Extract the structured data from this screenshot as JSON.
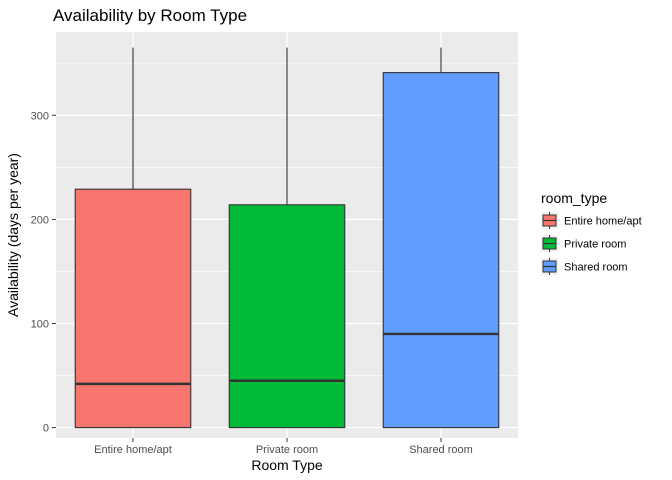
{
  "chart_data": {
    "type": "boxplot",
    "title": "Availability by Room Type",
    "xlabel": "Room Type",
    "ylabel": "Availability (days per year)",
    "ylim": [
      -10,
      380
    ],
    "yticks": [
      0,
      100,
      200,
      300
    ],
    "ytick_labels": [
      "0",
      "100",
      "200",
      "300"
    ],
    "categories": [
      "Entire home/apt",
      "Private room",
      "Shared room"
    ],
    "boxes": [
      {
        "category": "Entire home/apt",
        "min": 0,
        "q1": 0,
        "median": 42,
        "q3": 229,
        "max": 365,
        "color": "#F8766D"
      },
      {
        "category": "Private room",
        "min": 0,
        "q1": 0,
        "median": 45,
        "q3": 214,
        "max": 365,
        "color": "#00BA38"
      },
      {
        "category": "Shared room",
        "min": 0,
        "q1": 0,
        "median": 90,
        "q3": 341,
        "max": 365,
        "color": "#619CFF"
      }
    ],
    "grid": true,
    "legend": {
      "position": "right",
      "title": "room_type",
      "entries": [
        "Entire home/apt",
        "Private room",
        "Shared room"
      ]
    },
    "colors": {
      "panel_background": "#EBEBEB",
      "grid_major": "#FFFFFF",
      "outline": "#333333"
    }
  }
}
